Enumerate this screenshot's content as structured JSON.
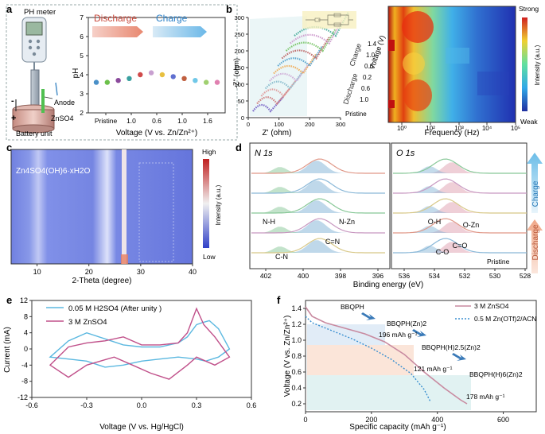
{
  "panel_labels": [
    "a",
    "b",
    "c",
    "d",
    "e",
    "f"
  ],
  "a": {
    "ph_meter": "PH meter",
    "anode": "Anode",
    "electrolyte": "ZnSO4",
    "battery_unit": "Battery unit",
    "discharge": "Discharge",
    "charge": "Charge",
    "neg_sign": "-",
    "pos_sign": "+"
  },
  "b": {
    "charge": "Charge",
    "discharge": "Discharge",
    "pristine": "Pristine",
    "voltage_axis_label": "Voltage (V)",
    "voltage_ticks": [
      "1.4",
      "1.0",
      "0.6",
      "0.2",
      "0.6",
      "1.0"
    ],
    "heatmap_strong": "Strong",
    "heatmap_weak": "Weak",
    "heatmap_cbar_label": "Intensity (a.u.)"
  },
  "c": {
    "annotation": "Zn4SO4(OH)6·xH2O",
    "cbar_high": "High",
    "cbar_low": "Low",
    "cbar_label": "Intensity (a.u.)"
  },
  "d": {
    "n1s_title": "N 1s",
    "o1s_title": "O 1s",
    "labels": [
      "N-H",
      "N-Zn",
      "C=N",
      "C-N",
      "O-H",
      "O-Zn",
      "C=O",
      "C-O"
    ],
    "pristine": "Pristine",
    "charge": "Charge",
    "discharge": "Discharge"
  },
  "f": {
    "species": [
      "BBQPH",
      "BBQPH(Zn)2",
      "BBQPH(H)2.5(Zn)2",
      "BBQPH(H)6(Zn)2"
    ],
    "capacities": [
      "196 mAh g⁻¹",
      "121 mAh g⁻¹",
      "178 mAh g⁻¹"
    ]
  },
  "chart_data": [
    {
      "panel": "a",
      "type": "scatter",
      "xlabel": "Voltage (V vs. Zn/Zn²⁺)",
      "ylabel": "pH",
      "xticks": [
        "Pristine",
        "1.0",
        "0.6",
        "1.0",
        "1.6"
      ],
      "ylim": [
        2,
        7
      ],
      "yticks": [
        2,
        3,
        4,
        5,
        6,
        7
      ],
      "values": [
        3.6,
        3.6,
        3.7,
        3.8,
        4.0,
        4.1,
        4.0,
        3.9,
        3.8,
        3.7,
        3.6,
        3.6
      ],
      "colors": [
        "#4a90c8",
        "#6cc04a",
        "#8b4a9c",
        "#3aa0a0",
        "#d04a4a",
        "#c8a0d0",
        "#e8c040",
        "#6070d0",
        "#c06040",
        "#70c8e8",
        "#a0d070",
        "#e080b0"
      ]
    },
    {
      "panel": "b-left",
      "type": "line",
      "xlabel": "Z' (ohm)",
      "ylabel": "-Z'' (ohm)",
      "xlim": [
        0,
        300
      ],
      "ylim": [
        0,
        300
      ],
      "xticks": [
        0,
        100,
        200,
        300
      ],
      "yticks": [
        0,
        50,
        100,
        150,
        200,
        250,
        300
      ]
    },
    {
      "panel": "b-right",
      "type": "heatmap",
      "xlabel": "Frequency (Hz)",
      "xticks": [
        "10⁰",
        "10²",
        "10³",
        "10⁴",
        "10⁵"
      ]
    },
    {
      "panel": "c",
      "type": "heatmap",
      "xlabel": "2-Theta (degree)",
      "xlim": [
        5,
        40
      ],
      "xticks": [
        10,
        20,
        30,
        40
      ]
    },
    {
      "panel": "d",
      "type": "line",
      "xlabel": "Binding energy (eV)",
      "n1s_xticks": [
        402,
        400,
        398,
        396
      ],
      "o1s_xticks": [
        536,
        534,
        532,
        530,
        528
      ]
    },
    {
      "panel": "e",
      "type": "line",
      "xlabel": "Voltage (V vs. Hg/HgCl)",
      "ylabel": "Current (mA)",
      "xlim": [
        -0.6,
        0.6
      ],
      "ylim": [
        -12,
        12
      ],
      "xticks": [
        -0.6,
        -0.3,
        0.0,
        0.3,
        0.6
      ],
      "yticks": [
        -12,
        -8,
        -4,
        0,
        4,
        8,
        12
      ],
      "series": [
        {
          "name": "0.05 M H2SO4 (After unity )",
          "color": "#5bb8e0"
        },
        {
          "name": "3 M ZnSO4",
          "color": "#c0508a"
        }
      ]
    },
    {
      "panel": "f",
      "type": "line",
      "xlabel": "Specific capacity (mAh g⁻¹)",
      "ylabel": "Voltage (V vs. Zn/Zn²⁺)",
      "xlim": [
        0,
        700
      ],
      "ylim": [
        0.1,
        1.5
      ],
      "xticks": [
        0,
        200,
        400,
        600
      ],
      "yticks": [
        0.2,
        0.4,
        0.6,
        0.8,
        1.0,
        1.2,
        1.4
      ],
      "series": [
        {
          "name": "3 M ZnSO4",
          "color": "#c88aa0"
        },
        {
          "name": "0.5 M Zn(OTf)2/ACN",
          "color": "#3a8fd0"
        }
      ]
    }
  ]
}
